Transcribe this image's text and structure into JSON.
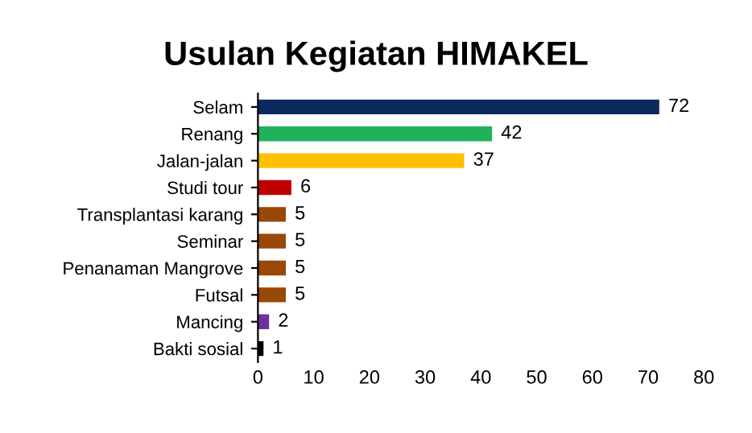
{
  "chart_data": {
    "type": "bar",
    "orientation": "horizontal",
    "title": "Usulan Kegiatan HIMAKEL",
    "categories": [
      "Selam",
      "Renang",
      "Jalan-jalan",
      "Studi tour",
      "Transplantasi karang",
      "Seminar",
      "Penanaman Mangrove",
      "Futsal",
      "Mancing",
      "Bakti sosial"
    ],
    "values": [
      72,
      42,
      37,
      6,
      5,
      5,
      5,
      5,
      2,
      1
    ],
    "colors": [
      "#0d2a5e",
      "#1fb25a",
      "#ffc000",
      "#c00000",
      "#984807",
      "#984807",
      "#984807",
      "#984807",
      "#7030a0",
      "#000000"
    ],
    "xlim": [
      0,
      80
    ],
    "xticks": [
      0,
      10,
      20,
      30,
      40,
      50,
      60,
      70,
      80
    ],
    "data_labels": true,
    "grid": false,
    "legend": false
  }
}
